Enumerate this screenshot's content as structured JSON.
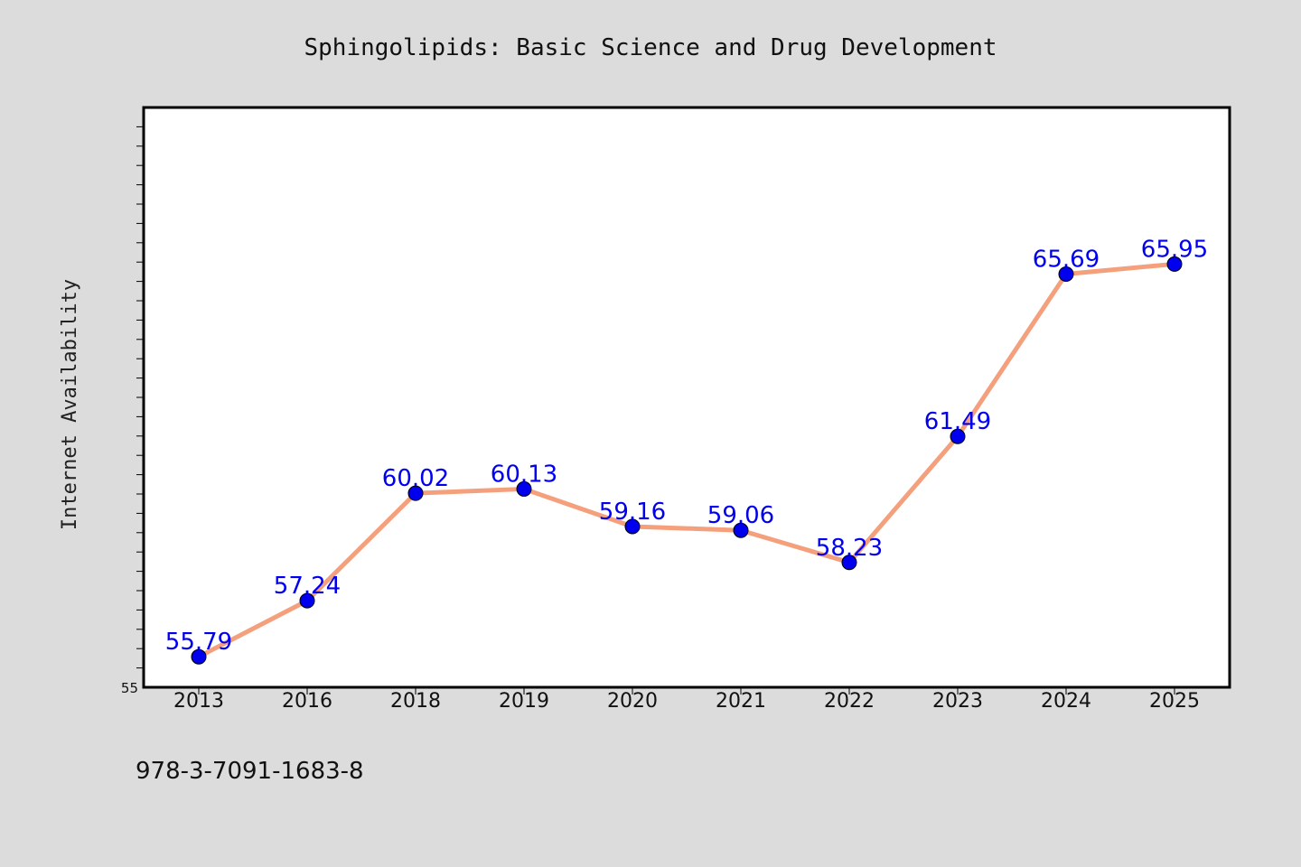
{
  "chart_data": {
    "type": "line",
    "title": "Sphingolipids: Basic Science and Drug Development",
    "xlabel": "",
    "ylabel": "Internet Availability",
    "categories": [
      "2013",
      "2016",
      "2018",
      "2019",
      "2020",
      "2021",
      "2022",
      "2023",
      "2024",
      "2025"
    ],
    "series": [
      {
        "values": [
          55.79,
          57.24,
          60.02,
          60.13,
          59.16,
          59.06,
          58.23,
          61.49,
          65.69,
          65.95
        ],
        "data_labels": [
          "55.79",
          "57.24",
          "60.02",
          "60.13",
          "59.16",
          "59.06",
          "58.23",
          "61.49",
          "65.69",
          "65.95"
        ]
      }
    ],
    "ylim": [
      55,
      70
    ],
    "y_tick_labels": [
      "55"
    ],
    "grid": false,
    "legend": "none",
    "colors": {
      "line": "#f4a07c",
      "marker": "#0000ee",
      "data_label": "#0000ee",
      "plot_background": "#ffffff",
      "page_background": "#dcdcdc"
    }
  },
  "footnote": "978-3-7091-1683-8"
}
